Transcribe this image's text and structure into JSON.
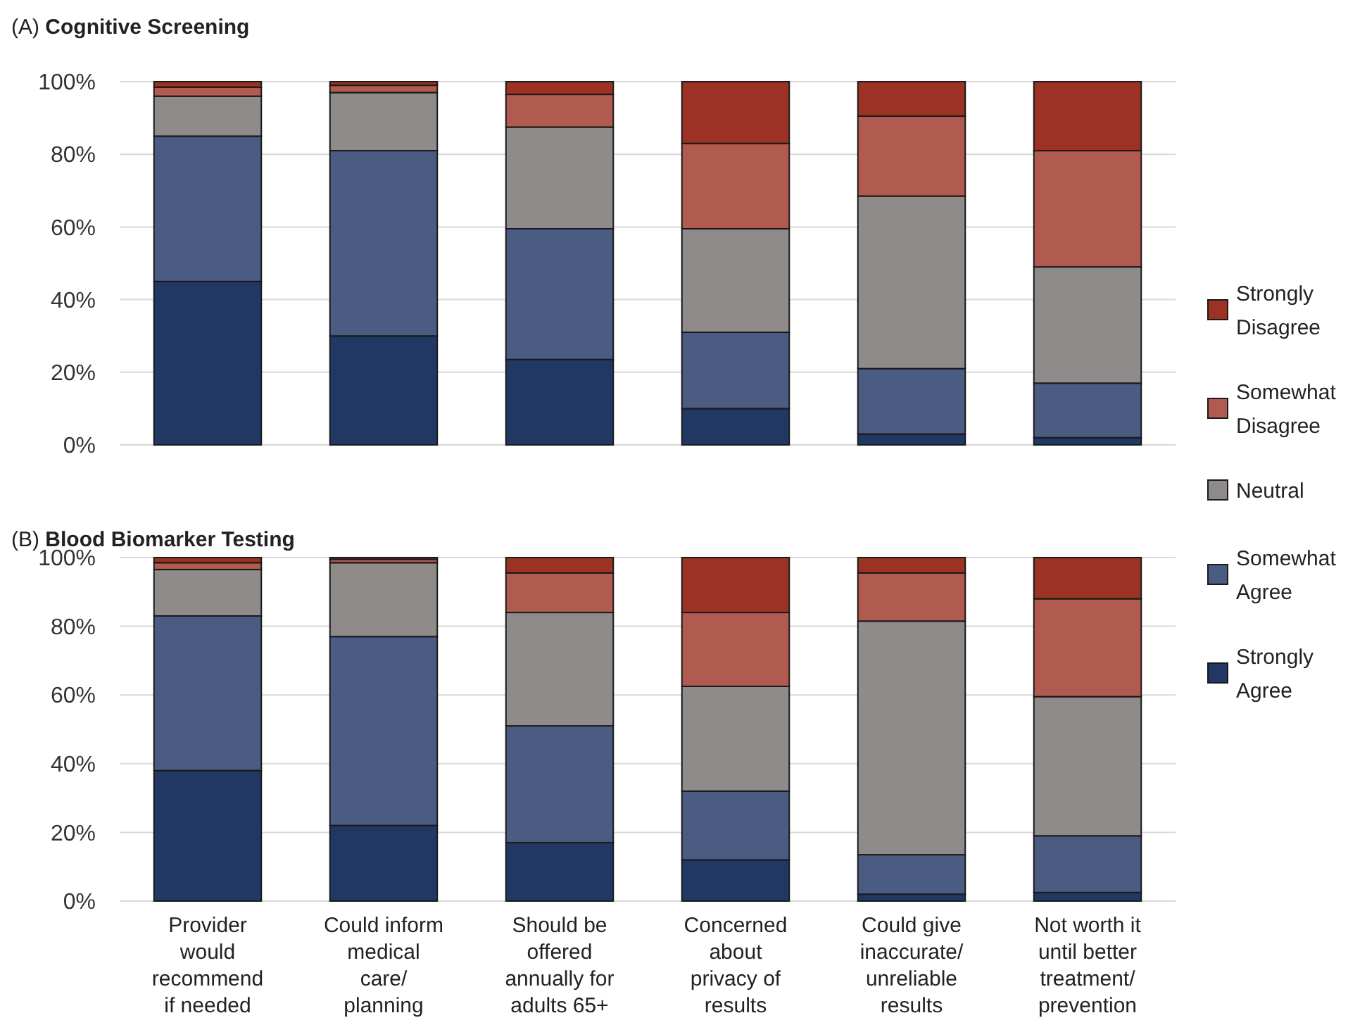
{
  "chart_data": [
    {
      "type": "bar",
      "stacked": true,
      "title": "(A) Cognitive Screening",
      "categories": [
        null,
        null,
        null,
        null,
        null,
        null
      ],
      "ylim": [
        0,
        100
      ],
      "yticks": [
        {
          "value": 0,
          "label": "0%"
        },
        {
          "value": 20,
          "label": "20%"
        },
        {
          "value": 40,
          "label": "40%"
        },
        {
          "value": 60,
          "label": "60%"
        },
        {
          "value": 80,
          "label": "80%"
        },
        {
          "value": 100,
          "label": "100%"
        }
      ],
      "grid": "y",
      "legend": "right",
      "series": [
        {
          "name": "Strongly Agree",
          "color": "#213864",
          "values": [
            45,
            30,
            23.5,
            10,
            3,
            2
          ]
        },
        {
          "name": "Somewhat Agree",
          "color": "#4a5c82",
          "values": [
            40,
            51,
            36,
            21,
            18,
            15
          ]
        },
        {
          "name": "Neutral",
          "color": "#8e8b8a",
          "values": [
            11,
            16,
            28,
            28.5,
            47.5,
            32
          ]
        },
        {
          "name": "Somewhat Disagree",
          "color": "#b05a50",
          "values": [
            2.5,
            2,
            9,
            23.5,
            22,
            32
          ]
        },
        {
          "name": "Strongly Disagree",
          "color": "#9b3224",
          "values": [
            1.5,
            1,
            3.5,
            17,
            9.5,
            19
          ]
        }
      ]
    },
    {
      "type": "bar",
      "stacked": true,
      "title": "(B) Blood Biomarker Testing",
      "categories": [
        "Provider\nwould\nrecommend\nif needed",
        "Could inform\nmedical\ncare/\nplanning",
        "Should be\noffered\nannually for\nadults 65+",
        "Concerned\nabout\nprivacy of\nresults",
        "Could give\ninaccurate/\nunreliable\nresults",
        "Not worth it\nuntil better\ntreatment/\nprevention"
      ],
      "ylim": [
        0,
        100
      ],
      "yticks": [
        {
          "value": 0,
          "label": "0%"
        },
        {
          "value": 20,
          "label": "20%"
        },
        {
          "value": 40,
          "label": "40%"
        },
        {
          "value": 60,
          "label": "60%"
        },
        {
          "value": 80,
          "label": "80%"
        },
        {
          "value": 100,
          "label": "100%"
        }
      ],
      "grid": "y",
      "series": [
        {
          "color": "#213864",
          "values": [
            38,
            22,
            17,
            12,
            2,
            2.5
          ]
        },
        {
          "color": "#4a5c82",
          "values": [
            45,
            55,
            34,
            20,
            11.5,
            16.5
          ]
        },
        {
          "color": "#8e8b8a",
          "values": [
            13.5,
            21.5,
            33,
            30.5,
            68,
            40.5
          ]
        },
        {
          "color": "#b05a50",
          "values": [
            2,
            1,
            11.5,
            21.5,
            14,
            28.5
          ]
        },
        {
          "color": "#9b3224",
          "values": [
            1.5,
            0.5,
            4.5,
            16,
            4.5,
            12
          ]
        }
      ]
    }
  ]
}
